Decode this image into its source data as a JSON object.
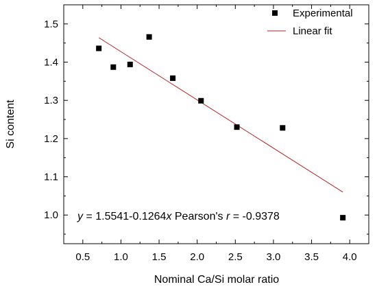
{
  "chart_data": {
    "type": "scatter",
    "xlabel": "Nominal Ca/Si molar ratio",
    "ylabel": "Si content",
    "xlim": [
      0.25,
      4.25
    ],
    "ylim": [
      0.925,
      1.55
    ],
    "xticks": [
      0.5,
      1.0,
      1.5,
      2.0,
      2.5,
      3.0,
      3.5,
      4.0
    ],
    "xtick_labels": [
      "0.5",
      "1.0",
      "1.5",
      "2.0",
      "2.5",
      "3.0",
      "3.5",
      "4.0"
    ],
    "yticks": [
      1.0,
      1.1,
      1.2,
      1.3,
      1.4,
      1.5
    ],
    "ytick_labels": [
      "1.0",
      "1.1",
      "1.2",
      "1.3",
      "1.4",
      "1.5"
    ],
    "series": [
      {
        "name": "Experimental",
        "kind": "scatter",
        "marker": "square",
        "color": "#000000",
        "x": [
          0.71,
          0.9,
          1.12,
          1.37,
          1.68,
          2.05,
          2.52,
          3.12,
          3.91
        ],
        "y": [
          1.436,
          1.387,
          1.394,
          1.466,
          1.358,
          1.299,
          1.23,
          1.228,
          0.993
        ]
      },
      {
        "name": "Linear fit",
        "kind": "line",
        "color": "#b22222",
        "x": [
          0.71,
          3.91
        ],
        "y": [
          1.464,
          1.06
        ]
      }
    ],
    "annotation": {
      "parts": [
        {
          "text": "y",
          "italic": true
        },
        {
          "text": " = 1.5541-0.1264",
          "italic": false
        },
        {
          "text": "x",
          "italic": true
        },
        {
          "text": " Pearson's ",
          "italic": false
        },
        {
          "text": "r",
          "italic": true
        },
        {
          "text": " = -0.9378",
          "italic": false
        }
      ]
    },
    "legend": {
      "position": "top-right",
      "entries": [
        "Experimental",
        "Linear fit"
      ]
    },
    "grid": false
  }
}
